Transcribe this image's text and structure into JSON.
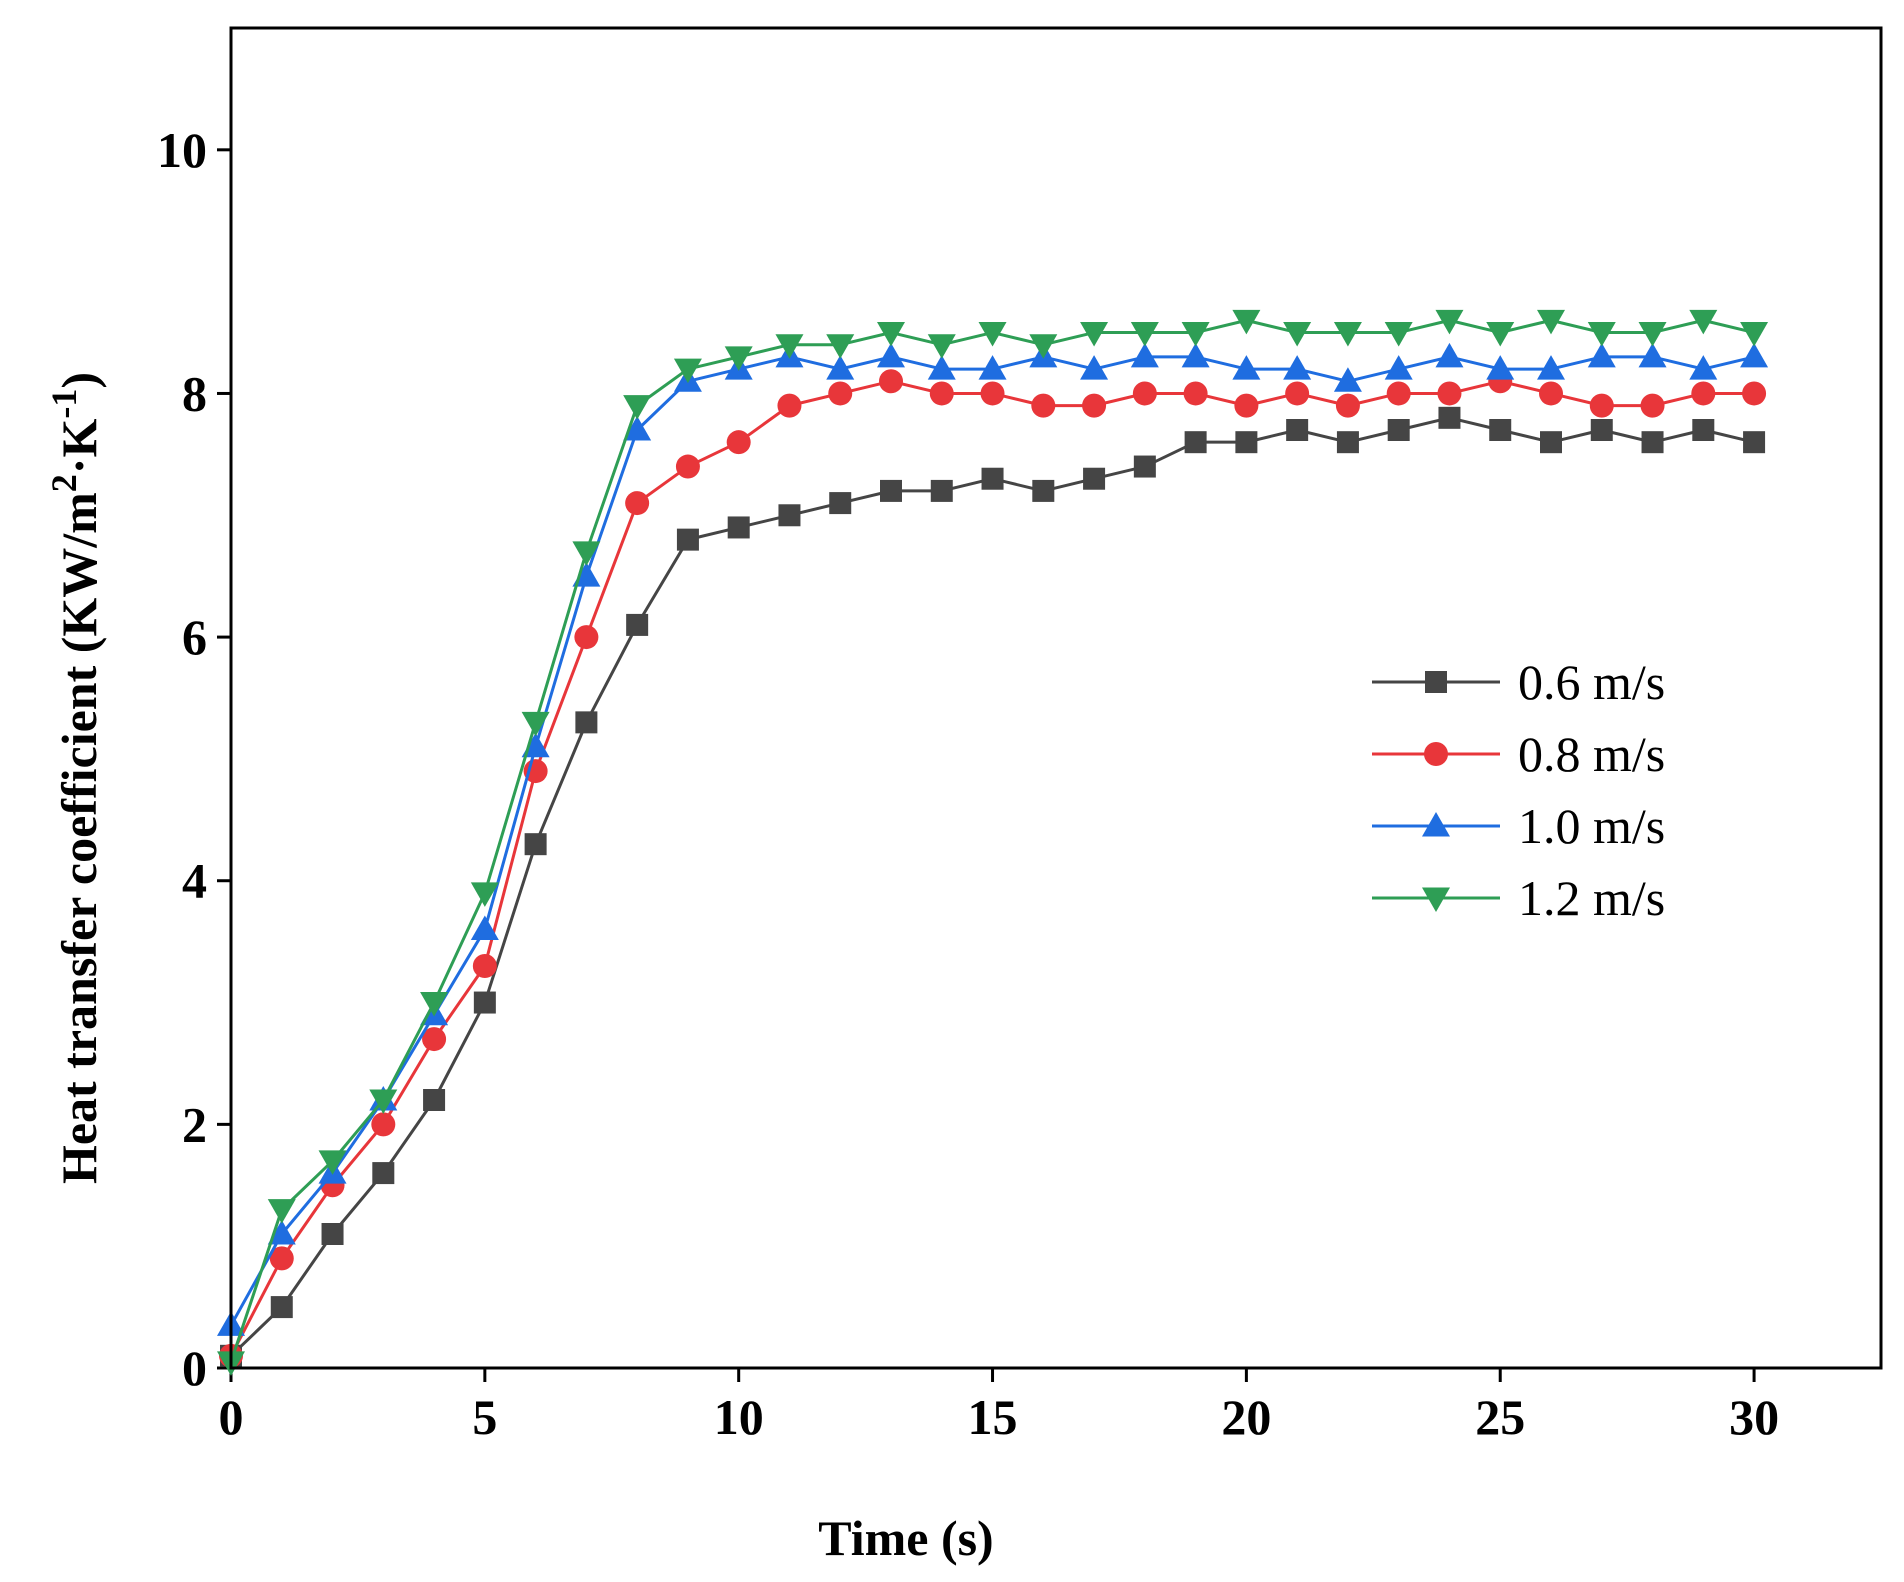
{
  "chart_data": {
    "type": "line",
    "title": "",
    "xlabel": "Time (s)",
    "ylabel": {
      "prefix": "Heat transfer coefficient (KW/m",
      "sup1": "2",
      "middle": "·K",
      "sup2": "-1",
      "suffix": ")"
    },
    "xlim": [
      0,
      32.5
    ],
    "ylim": [
      0,
      11
    ],
    "xticks": [
      0,
      5,
      10,
      15,
      20,
      25,
      30
    ],
    "yticks": [
      0,
      2,
      4,
      6,
      8,
      10
    ],
    "x": [
      0,
      1,
      2,
      3,
      4,
      5,
      6,
      7,
      8,
      9,
      10,
      11,
      12,
      13,
      14,
      15,
      16,
      17,
      18,
      19,
      20,
      21,
      22,
      23,
      24,
      25,
      26,
      27,
      28,
      29,
      30
    ],
    "series": [
      {
        "name": "0.6 m/s",
        "color": "#454545",
        "marker": "square",
        "values": [
          0.1,
          0.5,
          1.1,
          1.6,
          2.2,
          3.0,
          4.3,
          5.3,
          6.1,
          6.8,
          6.9,
          7.0,
          7.1,
          7.2,
          7.2,
          7.3,
          7.2,
          7.3,
          7.4,
          7.6,
          7.6,
          7.7,
          7.6,
          7.7,
          7.8,
          7.7,
          7.6,
          7.7,
          7.6,
          7.7,
          7.6
        ]
      },
      {
        "name": "0.8 m/s",
        "color": "#e8363a",
        "marker": "circle",
        "values": [
          0.1,
          0.9,
          1.5,
          2.0,
          2.7,
          3.3,
          4.9,
          6.0,
          7.1,
          7.4,
          7.6,
          7.9,
          8.0,
          8.1,
          8.0,
          8.0,
          7.9,
          7.9,
          8.0,
          8.0,
          7.9,
          8.0,
          7.9,
          8.0,
          8.0,
          8.1,
          8.0,
          7.9,
          7.9,
          8.0,
          8.0
        ]
      },
      {
        "name": "1.0 m/s",
        "color": "#1f6de0",
        "marker": "triangle-up",
        "values": [
          0.35,
          1.1,
          1.6,
          2.2,
          2.9,
          3.6,
          5.1,
          6.5,
          7.7,
          8.1,
          8.2,
          8.3,
          8.2,
          8.3,
          8.2,
          8.2,
          8.3,
          8.2,
          8.3,
          8.3,
          8.2,
          8.2,
          8.1,
          8.2,
          8.3,
          8.2,
          8.2,
          8.3,
          8.3,
          8.2,
          8.3
        ]
      },
      {
        "name": "1.2 m/s",
        "color": "#2e9e55",
        "marker": "triangle-down",
        "values": [
          0.05,
          1.3,
          1.7,
          2.2,
          3.0,
          3.9,
          5.3,
          6.7,
          7.9,
          8.2,
          8.3,
          8.4,
          8.4,
          8.5,
          8.4,
          8.5,
          8.4,
          8.5,
          8.5,
          8.5,
          8.6,
          8.5,
          8.5,
          8.5,
          8.6,
          8.5,
          8.6,
          8.5,
          8.5,
          8.6,
          8.5
        ]
      }
    ],
    "legend": {
      "position": "right-middle"
    }
  }
}
